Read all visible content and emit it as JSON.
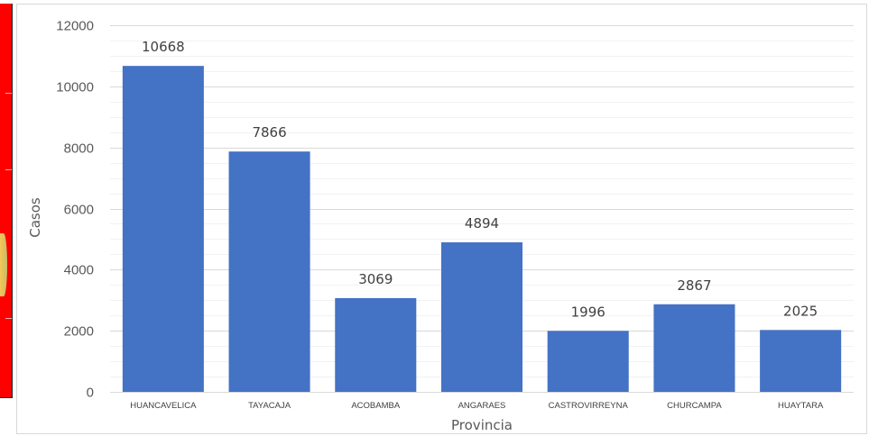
{
  "chart_data": {
    "type": "bar",
    "title": "",
    "xlabel": "Provincia",
    "ylabel": "Casos",
    "ylim": [
      0,
      12000
    ],
    "yticks": [
      0,
      2000,
      4000,
      6000,
      8000,
      10000,
      12000
    ],
    "yticks_labels": [
      "0",
      "2000",
      "4000",
      "6000",
      "8000",
      "10000",
      "12000"
    ],
    "grid": true,
    "legend": "none",
    "bar_color": "#4472c4",
    "categories": [
      "HUANCAVELICA",
      "TAYACAJA",
      "ACOBAMBA",
      "ANGARAES",
      "CASTROVIRREYNA",
      "CHURCAMPA",
      "HUAYTARA"
    ],
    "values": [
      10668,
      7866,
      3069,
      4894,
      1996,
      2867,
      2025
    ],
    "data_labels": [
      "10668",
      "7866",
      "3069",
      "4894",
      "1996",
      "2867",
      "2025"
    ]
  }
}
